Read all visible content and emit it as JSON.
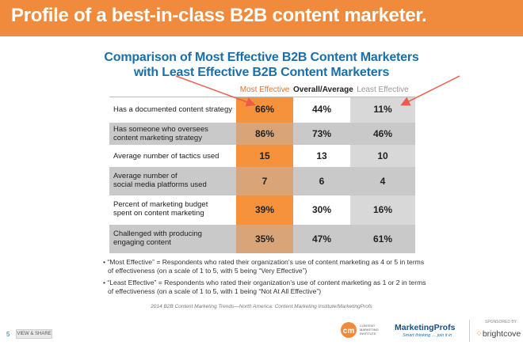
{
  "banner": {
    "title": "Profile of a best-in-class B2B content marketer."
  },
  "subtitle": {
    "line1": "Comparison of Most Effective B2B Content Marketers",
    "line2": "with Least Effective B2B Content Marketers"
  },
  "chart_data": {
    "type": "table",
    "columns": [
      "Most Effective",
      "Overall/Average",
      "Least Effective"
    ],
    "rows": [
      {
        "label": "Has a documented content strategy",
        "values": [
          "66%",
          "44%",
          "11%"
        ]
      },
      {
        "label": "Has someone who oversees content marketing strategy",
        "values": [
          "86%",
          "73%",
          "46%"
        ]
      },
      {
        "label": "Average number of tactics used",
        "values": [
          "15",
          "13",
          "10"
        ]
      },
      {
        "label": "Average number of social media platforms used",
        "values": [
          "7",
          "6",
          "4"
        ]
      },
      {
        "label": "Percent of marketing budget spent on content marketing",
        "values": [
          "39%",
          "30%",
          "16%"
        ]
      },
      {
        "label": "Challenged with producing engaging content",
        "values": [
          "35%",
          "47%",
          "61%"
        ]
      }
    ]
  },
  "labels": {
    "r1": [
      "Has a documented content strategy"
    ],
    "r2": [
      "Has someone who oversees",
      "content marketing strategy"
    ],
    "r3": [
      "Average number of tactics used"
    ],
    "r4": [
      "Average number of",
      "social media platforms used"
    ],
    "r5": [
      "Percent of marketing budget",
      "spent on content marketing"
    ],
    "r6": [
      "Challenged with producing",
      "engaging content"
    ]
  },
  "footnotes": {
    "most_1": "• “Most Effective” = Respondents who rated their organization’s use of content marketing as 4 or 5 in terms",
    "most_2": "of effectiveness (on a scale of 1 to 5, with 5 being “Very Effective”)",
    "least_1": "• “Least Effective” = Respondents who rated their organization’s use of content marketing as 1 or 2 in terms",
    "least_2": "of effectiveness (on a scale of 1 to 5, with 1 being “Not At All Effective”)"
  },
  "source": "2014 B2B Content Marketing Trends—North America: Content Marketing Institute/MarketingProfs",
  "footer": {
    "page": "5",
    "share": "VIEW & SHARE",
    "cmi_logo": "CONTENT MARKETING INSTITUTE",
    "mp_logo": "MarketingProfs",
    "mp_tagline": "Smart thinking … join it in",
    "sponsored_by": "SPONSORED BY",
    "brightcove": "brightcove"
  },
  "colors": {
    "banner": "#f08a3c",
    "subtitle": "#1b6fa8",
    "most_column": "#f6923b",
    "arrow": "#ee5a4a"
  }
}
